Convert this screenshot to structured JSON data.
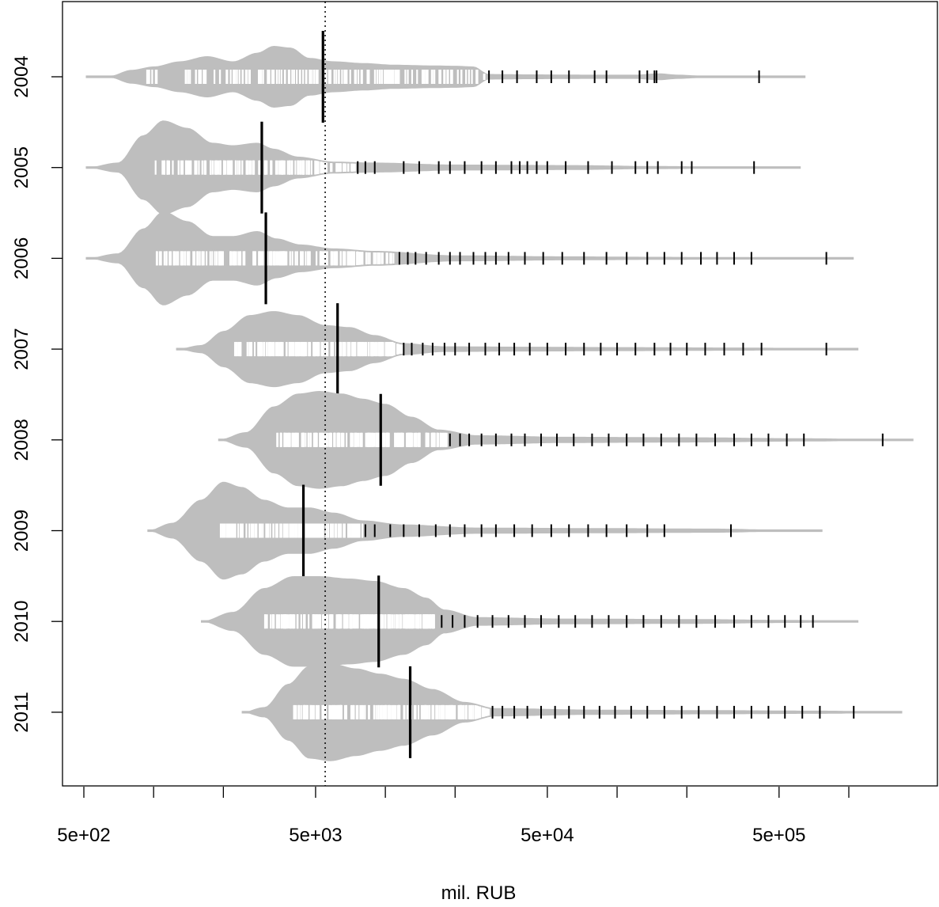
{
  "chart_data": {
    "type": "violin",
    "title": "",
    "xlabel": "mil. RUB",
    "ylabel": "",
    "x_scale": "log10",
    "xlim": [
      450,
      1500000
    ],
    "x_ticks": [
      500,
      1000,
      2000,
      5000,
      10000,
      20000,
      50000,
      100000,
      200000,
      500000,
      1000000
    ],
    "x_tick_labels": [
      {
        "value": 500,
        "label": "5e+02"
      },
      {
        "value": 5000,
        "label": "5e+03"
      },
      {
        "value": 50000,
        "label": "5e+04"
      },
      {
        "value": 500000,
        "label": "5e+05"
      }
    ],
    "reference_line": {
      "value": 5500,
      "style": "dotted"
    },
    "fill_color": "#bebebe",
    "rug_color_inside": "#ffffff",
    "rug_color_outside": "#000000",
    "median_color": "#000000",
    "categories": [
      "2004",
      "2005",
      "2006",
      "2007",
      "2008",
      "2009",
      "2010",
      "2011"
    ],
    "series": [
      {
        "name": "2004",
        "min": 510,
        "max": 650000,
        "median": 5380,
        "max_half_width_rel": 0.18,
        "density": [
          [
            510,
            0
          ],
          [
            650,
            0.03
          ],
          [
            800,
            0.2
          ],
          [
            1000,
            0.3
          ],
          [
            1300,
            0.45
          ],
          [
            1700,
            0.6
          ],
          [
            2200,
            0.45
          ],
          [
            2800,
            0.7
          ],
          [
            3300,
            0.9
          ],
          [
            3900,
            0.85
          ],
          [
            4700,
            0.55
          ],
          [
            6000,
            0.45
          ],
          [
            8000,
            0.4
          ],
          [
            11000,
            0.35
          ],
          [
            16000,
            0.33
          ],
          [
            20000,
            0.32
          ],
          [
            24000,
            0.3
          ],
          [
            28000,
            0.08
          ],
          [
            40000,
            0.07
          ],
          [
            80000,
            0.06
          ],
          [
            120000,
            0.06
          ],
          [
            150000,
            0.1
          ],
          [
            185000,
            0.06
          ],
          [
            250000,
            0.02
          ],
          [
            400000,
            0.01
          ],
          [
            650000,
            0
          ]
        ],
        "rug_min": 900,
        "rug_cut": 27000,
        "rug_max": 150000,
        "rug_count": 170,
        "outliers": [
          28000,
          32000,
          37000,
          45000,
          52000,
          62000,
          80000,
          90000,
          125000,
          135000,
          145000,
          148000,
          410000
        ]
      },
      {
        "name": "2005",
        "min": 510,
        "max": 620000,
        "median": 2930,
        "max_half_width_rel": 0.26,
        "density": [
          [
            510,
            0
          ],
          [
            700,
            0.1
          ],
          [
            900,
            0.65
          ],
          [
            1100,
            0.95
          ],
          [
            1400,
            0.8
          ],
          [
            1800,
            0.5
          ],
          [
            2200,
            0.45
          ],
          [
            2800,
            0.5
          ],
          [
            3300,
            0.38
          ],
          [
            4200,
            0.22
          ],
          [
            6000,
            0.12
          ],
          [
            9000,
            0.1
          ],
          [
            20000,
            0.06
          ],
          [
            60000,
            0.05
          ],
          [
            150000,
            0.03
          ],
          [
            300000,
            0.02
          ],
          [
            620000,
            0
          ]
        ],
        "rug_min": 1000,
        "rug_cut": 7500,
        "rug_max": 400000,
        "rug_count": 150,
        "outliers": [
          7600,
          8200,
          9000,
          12000,
          14000,
          17000,
          19000,
          22000,
          26000,
          30000,
          35000,
          38000,
          41000,
          45000,
          50000,
          60000,
          75000,
          95000,
          120000,
          135000,
          150000,
          190000,
          210000,
          390000
        ]
      },
      {
        "name": "2006",
        "min": 510,
        "max": 1050000,
        "median": 3050,
        "max_half_width_rel": 0.26,
        "density": [
          [
            510,
            0
          ],
          [
            700,
            0.1
          ],
          [
            900,
            0.6
          ],
          [
            1100,
            0.95
          ],
          [
            1400,
            0.75
          ],
          [
            1800,
            0.45
          ],
          [
            2200,
            0.45
          ],
          [
            2800,
            0.55
          ],
          [
            3400,
            0.4
          ],
          [
            4300,
            0.28
          ],
          [
            6000,
            0.2
          ],
          [
            9000,
            0.15
          ],
          [
            20000,
            0.06
          ],
          [
            60000,
            0.04
          ],
          [
            150000,
            0.03
          ],
          [
            400000,
            0.02
          ],
          [
            1050000,
            0
          ]
        ],
        "rug_min": 1000,
        "rug_cut": 11000,
        "rug_max": 800000,
        "rug_count": 170,
        "outliers": [
          11500,
          12500,
          13500,
          15000,
          17000,
          19000,
          21000,
          24000,
          27000,
          30000,
          34000,
          40000,
          48000,
          58000,
          72000,
          90000,
          110000,
          135000,
          160000,
          190000,
          230000,
          270000,
          320000,
          380000,
          800000
        ]
      },
      {
        "name": "2007",
        "min": 1250,
        "max": 1100000,
        "median": 6220,
        "max_half_width_rel": 0.21,
        "density": [
          [
            1250,
            0
          ],
          [
            1600,
            0.1
          ],
          [
            2000,
            0.45
          ],
          [
            2600,
            0.85
          ],
          [
            3300,
            0.95
          ],
          [
            4200,
            0.85
          ],
          [
            5500,
            0.6
          ],
          [
            7000,
            0.55
          ],
          [
            9000,
            0.35
          ],
          [
            12000,
            0.15
          ],
          [
            18000,
            0.07
          ],
          [
            40000,
            0.06
          ],
          [
            100000,
            0.05
          ],
          [
            300000,
            0.04
          ],
          [
            600000,
            0.03
          ],
          [
            1100000,
            0
          ]
        ],
        "rug_min": 2200,
        "rug_cut": 12000,
        "rug_max": 800000,
        "rug_count": 170,
        "outliers": [
          12000,
          13000,
          14500,
          16000,
          18000,
          20000,
          23000,
          27000,
          31000,
          36000,
          42000,
          50000,
          60000,
          72000,
          85000,
          100000,
          120000,
          145000,
          170000,
          200000,
          240000,
          290000,
          350000,
          420000,
          800000
        ]
      },
      {
        "name": "2008",
        "min": 1900,
        "max": 1900000,
        "median": 9550,
        "max_half_width_rel": 0.27,
        "density": [
          [
            1900,
            0
          ],
          [
            2500,
            0.15
          ],
          [
            3300,
            0.65
          ],
          [
            4200,
            0.9
          ],
          [
            5200,
            0.95
          ],
          [
            6500,
            0.9
          ],
          [
            8000,
            0.8
          ],
          [
            10000,
            0.7
          ],
          [
            13000,
            0.45
          ],
          [
            17000,
            0.2
          ],
          [
            25000,
            0.09
          ],
          [
            60000,
            0.06
          ],
          [
            200000,
            0.05
          ],
          [
            700000,
            0.03
          ],
          [
            1900000,
            0
          ]
        ],
        "rug_min": 3400,
        "rug_cut": 19000,
        "rug_max": 1400000,
        "rug_count": 190,
        "outliers": [
          19000,
          21000,
          23000,
          26000,
          30000,
          35000,
          40000,
          47000,
          55000,
          65000,
          78000,
          92000,
          110000,
          130000,
          155000,
          185000,
          220000,
          265000,
          320000,
          380000,
          450000,
          540000,
          640000,
          1400000
        ]
      },
      {
        "name": "2009",
        "min": 940,
        "max": 770000,
        "median": 4430,
        "max_half_width_rel": 0.27,
        "density": [
          [
            940,
            0
          ],
          [
            1200,
            0.15
          ],
          [
            1600,
            0.6
          ],
          [
            2000,
            0.95
          ],
          [
            2400,
            0.85
          ],
          [
            3000,
            0.6
          ],
          [
            3800,
            0.45
          ],
          [
            4700,
            0.45
          ],
          [
            6000,
            0.35
          ],
          [
            8000,
            0.2
          ],
          [
            12000,
            0.12
          ],
          [
            25000,
            0.06
          ],
          [
            80000,
            0.05
          ],
          [
            250000,
            0.04
          ],
          [
            770000,
            0
          ]
        ],
        "rug_min": 1900,
        "rug_cut": 8000,
        "rug_max": 310000,
        "rug_count": 150,
        "outliers": [
          8200,
          9000,
          10500,
          12000,
          14000,
          16500,
          19000,
          22000,
          26000,
          30000,
          36000,
          43000,
          52000,
          62000,
          75000,
          90000,
          110000,
          135000,
          160000,
          310000
        ]
      },
      {
        "name": "2010",
        "min": 1600,
        "max": 1100000,
        "median": 9360,
        "max_half_width_rel": 0.25,
        "density": [
          [
            1600,
            0
          ],
          [
            2200,
            0.2
          ],
          [
            3000,
            0.7
          ],
          [
            4000,
            0.95
          ],
          [
            5200,
            0.95
          ],
          [
            7000,
            0.9
          ],
          [
            9000,
            0.85
          ],
          [
            12000,
            0.7
          ],
          [
            15000,
            0.5
          ],
          [
            18000,
            0.25
          ],
          [
            25000,
            0.09
          ],
          [
            60000,
            0.06
          ],
          [
            200000,
            0.05
          ],
          [
            600000,
            0.03
          ],
          [
            1100000,
            0
          ]
        ],
        "rug_min": 3000,
        "rug_cut": 17000,
        "rug_max": 700000,
        "rug_count": 190,
        "outliers": [
          17500,
          19500,
          22000,
          25000,
          29000,
          34000,
          40000,
          47000,
          56000,
          66000,
          78000,
          92000,
          110000,
          130000,
          155000,
          185000,
          220000,
          265000,
          320000,
          380000,
          450000,
          530000,
          620000,
          700000
        ]
      },
      {
        "name": "2011",
        "min": 2400,
        "max": 1700000,
        "median": 12800,
        "max_half_width_rel": 0.27,
        "density": [
          [
            2400,
            0
          ],
          [
            3000,
            0.1
          ],
          [
            3800,
            0.55
          ],
          [
            4700,
            0.9
          ],
          [
            5800,
            0.95
          ],
          [
            7500,
            0.85
          ],
          [
            9500,
            0.75
          ],
          [
            12000,
            0.65
          ],
          [
            16000,
            0.45
          ],
          [
            22000,
            0.2
          ],
          [
            30000,
            0.08
          ],
          [
            80000,
            0.05
          ],
          [
            250000,
            0.04
          ],
          [
            800000,
            0.03
          ],
          [
            1700000,
            0
          ]
        ],
        "rug_min": 4000,
        "rug_cut": 28000,
        "rug_max": 1050000,
        "rug_count": 180,
        "outliers": [
          29000,
          32000,
          36000,
          41000,
          47000,
          54000,
          62000,
          72000,
          84000,
          98000,
          115000,
          135000,
          160000,
          190000,
          225000,
          270000,
          320000,
          380000,
          450000,
          530000,
          630000,
          750000,
          1050000
        ]
      }
    ]
  }
}
